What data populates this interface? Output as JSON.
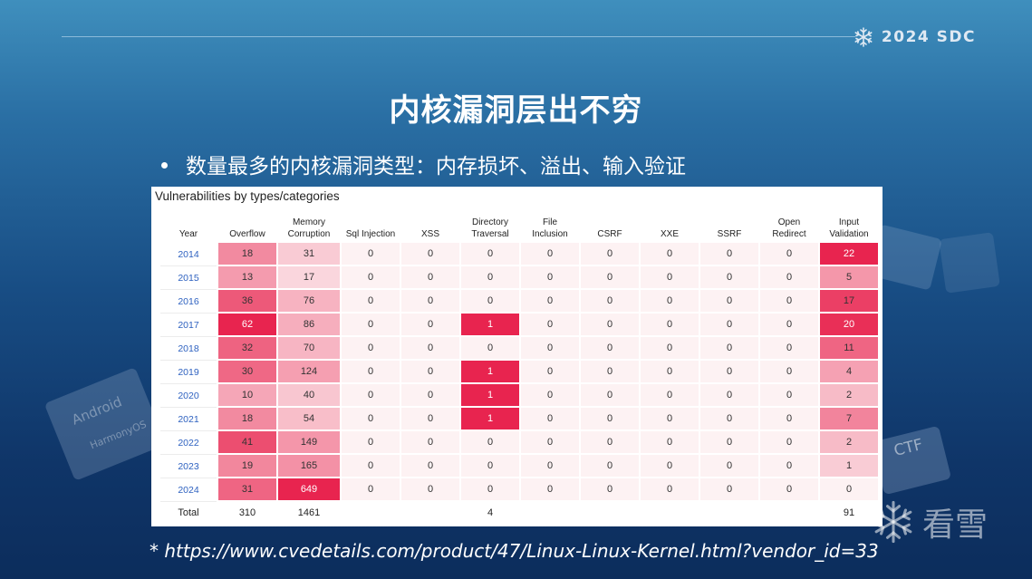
{
  "brand": {
    "text": "2024 SDC",
    "icon": "snowflake-icon"
  },
  "slide": {
    "title": "内核漏洞层出不穷",
    "bullet": "数量最多的内核漏洞类型：内存损坏、溢出、输入验证"
  },
  "table": {
    "title": "Vulnerabilities by types/categories",
    "headers": [
      [
        "Year"
      ],
      [
        "Overflow"
      ],
      [
        "Memory",
        "Corruption"
      ],
      [
        "Sql Injection"
      ],
      [
        "XSS"
      ],
      [
        "Directory",
        "Traversal"
      ],
      [
        "File",
        "Inclusion"
      ],
      [
        "CSRF"
      ],
      [
        "XXE"
      ],
      [
        "SSRF"
      ],
      [
        "Open",
        "Redirect"
      ],
      [
        "Input",
        "Validation"
      ]
    ],
    "rows": [
      {
        "year": "2014",
        "values": [
          "18",
          "31",
          "0",
          "0",
          "0",
          "0",
          "0",
          "0",
          "0",
          "0",
          "22"
        ]
      },
      {
        "year": "2015",
        "values": [
          "13",
          "17",
          "0",
          "0",
          "0",
          "0",
          "0",
          "0",
          "0",
          "0",
          "5"
        ]
      },
      {
        "year": "2016",
        "values": [
          "36",
          "76",
          "0",
          "0",
          "0",
          "0",
          "0",
          "0",
          "0",
          "0",
          "17"
        ]
      },
      {
        "year": "2017",
        "values": [
          "62",
          "86",
          "0",
          "0",
          "1",
          "0",
          "0",
          "0",
          "0",
          "0",
          "20"
        ]
      },
      {
        "year": "2018",
        "values": [
          "32",
          "70",
          "0",
          "0",
          "0",
          "0",
          "0",
          "0",
          "0",
          "0",
          "11"
        ]
      },
      {
        "year": "2019",
        "values": [
          "30",
          "124",
          "0",
          "0",
          "1",
          "0",
          "0",
          "0",
          "0",
          "0",
          "4"
        ]
      },
      {
        "year": "2020",
        "values": [
          "10",
          "40",
          "0",
          "0",
          "1",
          "0",
          "0",
          "0",
          "0",
          "0",
          "2"
        ]
      },
      {
        "year": "2021",
        "values": [
          "18",
          "54",
          "0",
          "0",
          "1",
          "0",
          "0",
          "0",
          "0",
          "0",
          "7"
        ]
      },
      {
        "year": "2022",
        "values": [
          "41",
          "149",
          "0",
          "0",
          "0",
          "0",
          "0",
          "0",
          "0",
          "0",
          "2"
        ]
      },
      {
        "year": "2023",
        "values": [
          "19",
          "165",
          "0",
          "0",
          "0",
          "0",
          "0",
          "0",
          "0",
          "0",
          "1"
        ]
      },
      {
        "year": "2024",
        "values": [
          "31",
          "649",
          "0",
          "0",
          "0",
          "0",
          "0",
          "0",
          "0",
          "0",
          "0"
        ]
      }
    ],
    "totals": {
      "label": "Total",
      "values": [
        "310",
        "1461",
        "",
        "",
        "4",
        "",
        "",
        "",
        "",
        "",
        "91"
      ]
    }
  },
  "footnote": "* https://www.cvedetails.com/product/47/Linux-Linux-Kernel.html?vendor_id=33",
  "decorations": {
    "left_cube_top": "Android",
    "left_cube_bottom": "HarmonyOS",
    "right_cube": "CTF"
  },
  "watermark": {
    "text": "看雪",
    "icon": "snowflake-icon"
  },
  "colors": {
    "heat_low": "#fdf2f3",
    "heat_high": "#e8244f",
    "link_blue": "#2f62c0"
  }
}
